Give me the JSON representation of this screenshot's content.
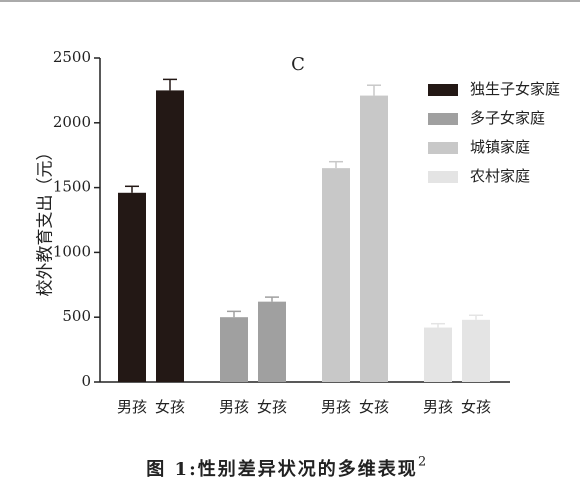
{
  "chart_data": {
    "type": "bar",
    "title": "C",
    "ylabel": "校外教育支出（元）",
    "categories": [
      "男孩",
      "女孩"
    ],
    "series": [
      {
        "name": "独生子女家庭",
        "color": "#231815",
        "values": [
          1460,
          2250
        ],
        "errors": [
          50,
          85
        ]
      },
      {
        "name": "多子女家庭",
        "color": "#a0a0a0",
        "values": [
          500,
          620
        ],
        "errors": [
          45,
          35
        ]
      },
      {
        "name": "城镇家庭",
        "color": "#c8c8c8",
        "values": [
          1650,
          2210
        ],
        "errors": [
          50,
          80
        ]
      },
      {
        "name": "农村家庭",
        "color": "#e4e4e4",
        "values": [
          420,
          480
        ],
        "errors": [
          30,
          35
        ]
      }
    ],
    "ylim": [
      0,
      2500
    ],
    "yticks": [
      0,
      500,
      1000,
      1500,
      2000,
      2500
    ],
    "legend": "upper right",
    "caption": "图 1:性别差异状况的多维表现",
    "caption_superscript": "2"
  }
}
